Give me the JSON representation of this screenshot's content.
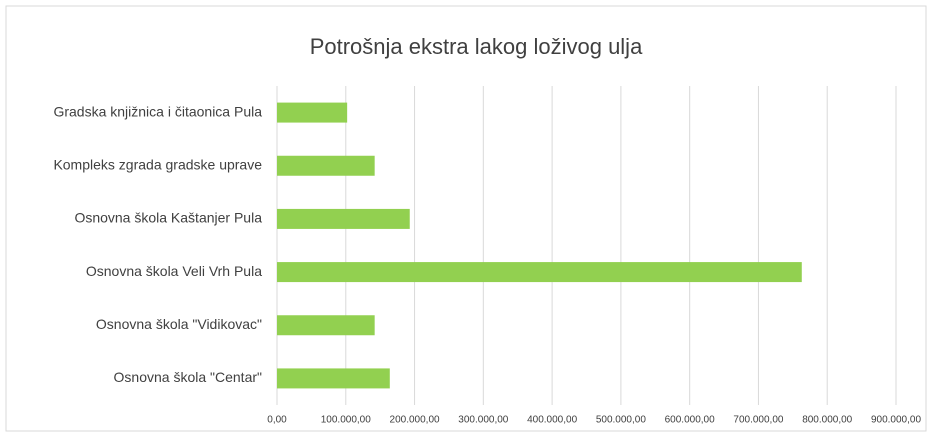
{
  "chart_data": {
    "type": "bar",
    "orientation": "horizontal",
    "title": "Potrošnja ekstra lakog loživog ulja",
    "categories": [
      "Gradska knjižnica i čitaonica Pula",
      "Kompleks zgrada gradske uprave",
      "Osnovna škola Kaštanjer Pula",
      "Osnovna škola Veli Vrh Pula",
      "Osnovna škola \"Vidikovac\"",
      "Osnovna škola \"Centar\""
    ],
    "values": [
      102000,
      142000,
      193000,
      763000,
      142000,
      164000
    ],
    "color": "#92d050",
    "xlim": [
      0,
      900000
    ],
    "xticks": [
      {
        "value": 0,
        "label": "0,00"
      },
      {
        "value": 100000,
        "label": "100.000,00"
      },
      {
        "value": 200000,
        "label": "200.000,00"
      },
      {
        "value": 300000,
        "label": "300.000,00"
      },
      {
        "value": 400000,
        "label": "400.000,00"
      },
      {
        "value": 500000,
        "label": "500.000,00"
      },
      {
        "value": 600000,
        "label": "600.000,00"
      },
      {
        "value": 700000,
        "label": "700.000,00"
      },
      {
        "value": 800000,
        "label": "800.000,00"
      },
      {
        "value": 900000,
        "label": "900.000,00"
      }
    ],
    "grid": true
  }
}
